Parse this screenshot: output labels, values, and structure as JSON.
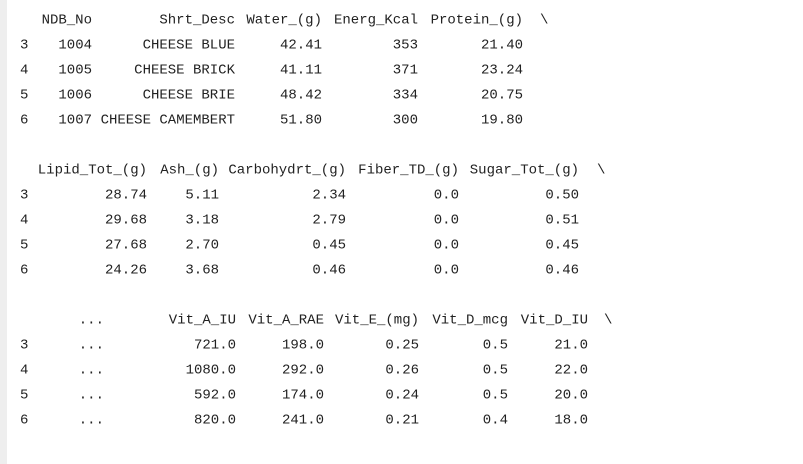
{
  "blocks": [
    {
      "columns": [
        "NDB_No",
        "Shrt_Desc",
        "Water_(g)",
        "Energ_Kcal",
        "Protein_(g)"
      ],
      "continuation": "\\",
      "rows": [
        {
          "index": "3",
          "cells": [
            "1004",
            "CHEESE BLUE",
            "42.41",
            "353",
            "21.40"
          ]
        },
        {
          "index": "4",
          "cells": [
            "1005",
            "CHEESE BRICK",
            "41.11",
            "371",
            "23.24"
          ]
        },
        {
          "index": "5",
          "cells": [
            "1006",
            "CHEESE BRIE",
            "48.42",
            "334",
            "20.75"
          ]
        },
        {
          "index": "6",
          "cells": [
            "1007",
            "CHEESE CAMEMBERT",
            "51.80",
            "300",
            "19.80"
          ]
        }
      ]
    },
    {
      "columns": [
        "Lipid_Tot_(g)",
        "Ash_(g)",
        "Carbohydrt_(g)",
        "Fiber_TD_(g)",
        "Sugar_Tot_(g)"
      ],
      "continuation": "\\",
      "rows": [
        {
          "index": "3",
          "cells": [
            "28.74",
            "5.11",
            "2.34",
            "0.0",
            "0.50"
          ]
        },
        {
          "index": "4",
          "cells": [
            "29.68",
            "3.18",
            "2.79",
            "0.0",
            "0.51"
          ]
        },
        {
          "index": "5",
          "cells": [
            "27.68",
            "2.70",
            "0.45",
            "0.0",
            "0.45"
          ]
        },
        {
          "index": "6",
          "cells": [
            "24.26",
            "3.68",
            "0.46",
            "0.0",
            "0.46"
          ]
        }
      ]
    },
    {
      "columns": [
        "...",
        "Vit_A_IU",
        "Vit_A_RAE",
        "Vit_E_(mg)",
        "Vit_D_mcg",
        "Vit_D_IU"
      ],
      "continuation": "\\",
      "rows": [
        {
          "index": "3",
          "cells": [
            "...",
            "721.0",
            "198.0",
            "0.25",
            "0.5",
            "21.0"
          ]
        },
        {
          "index": "4",
          "cells": [
            "...",
            "1080.0",
            "292.0",
            "0.26",
            "0.5",
            "22.0"
          ]
        },
        {
          "index": "5",
          "cells": [
            "...",
            "592.0",
            "174.0",
            "0.24",
            "0.5",
            "20.0"
          ]
        },
        {
          "index": "6",
          "cells": [
            "...",
            "820.0",
            "241.0",
            "0.21",
            "0.4",
            "18.0"
          ]
        }
      ]
    }
  ]
}
